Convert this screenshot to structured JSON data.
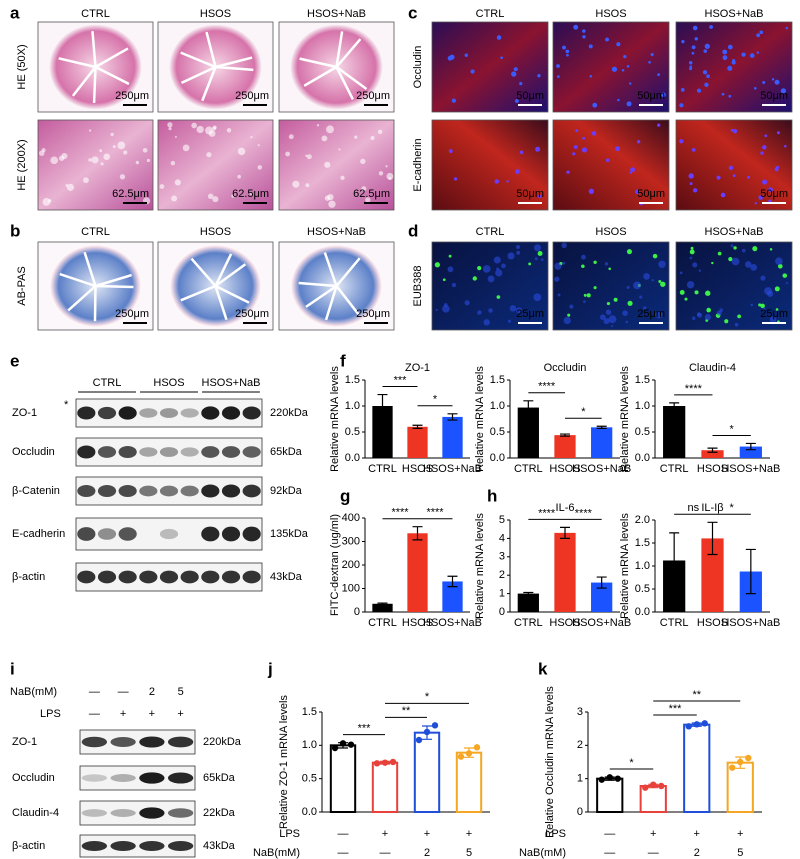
{
  "figure": {
    "a": {
      "letter": "a",
      "columns": [
        "CTRL",
        "HSOS",
        "HSOS+NaB"
      ],
      "rows": [
        {
          "label": "HE (50X)",
          "scale": [
            "250μm",
            "250μm",
            "250μm"
          ]
        },
        {
          "label": "HE (200X)",
          "scale": [
            "62.5μm",
            "62.5μm",
            "62.5μm"
          ]
        }
      ]
    },
    "b": {
      "letter": "b",
      "columns": [
        "CTRL",
        "HSOS",
        "HSOS+NaB"
      ],
      "rows": [
        {
          "label": "AB-PAS",
          "scale": [
            "250μm",
            "250μm",
            "250μm"
          ]
        }
      ]
    },
    "c": {
      "letter": "c",
      "columns": [
        "CTRL",
        "HSOS",
        "HSOS+NaB"
      ],
      "rows": [
        {
          "label": "Occludin",
          "scale": [
            "50μm",
            "50μm",
            "50μm"
          ]
        },
        {
          "label": "E-cadherin",
          "scale": [
            "50μm",
            "50μm",
            "50μm"
          ]
        }
      ]
    },
    "d": {
      "letter": "d",
      "columns": [
        "CTRL",
        "HSOS",
        "HSOS+NaB"
      ],
      "rows": [
        {
          "label": "EUB388",
          "scale": [
            "25μm",
            "25μm",
            "25μm"
          ]
        }
      ]
    },
    "e": {
      "letter": "e",
      "groups": [
        "CTRL",
        "HSOS",
        "HSOS+NaB"
      ],
      "marker": "*",
      "blots": [
        {
          "protein": "ZO-1",
          "size": "220kDa"
        },
        {
          "protein": "Occludin",
          "size": "65kDa"
        },
        {
          "protein": "β-Catenin",
          "size": "92kDa"
        },
        {
          "protein": "E-cadherin",
          "size": "135kDa"
        },
        {
          "protein": "β-actin",
          "size": "43kDa"
        }
      ]
    },
    "i": {
      "letter": "i",
      "conditions": [
        {
          "label": "NaB(mM)",
          "values": [
            "—",
            "—",
            "2",
            "5"
          ]
        },
        {
          "label": "LPS",
          "values": [
            "—",
            "+",
            "+",
            "+"
          ]
        }
      ],
      "blots": [
        {
          "protein": "ZO-1",
          "size": "220kDa"
        },
        {
          "protein": "Occludin",
          "size": "65kDa"
        },
        {
          "protein": "Claudin-4",
          "size": "22kDa"
        },
        {
          "protein": "β-actin",
          "size": "43kDa"
        }
      ]
    },
    "panel_letters": [
      "f",
      "g",
      "h",
      "j",
      "k"
    ]
  },
  "chart_data": [
    {
      "type": "bar",
      "title": "ZO-1",
      "y_label": "Relative mRNA levels",
      "categories": [
        "CTRL",
        "HSOS",
        "HSOS+NaB"
      ],
      "values": [
        1.0,
        0.6,
        0.79
      ],
      "errors": [
        0.22,
        0.03,
        0.06
      ],
      "colors": [
        "#000000",
        "#ee3524",
        "#1a53ff"
      ],
      "fill": "solid",
      "ylim": [
        0,
        1.5
      ],
      "yticks": [
        {
          "value": 0,
          "label": "0.0"
        },
        0.5,
        {
          "value": 1,
          "label": "1.0"
        },
        1.5
      ],
      "significance": [
        {
          "label": "***",
          "between": [
            0,
            1
          ]
        },
        {
          "label": "*",
          "between": [
            1,
            2
          ]
        }
      ]
    },
    {
      "type": "bar",
      "title": "Occludin",
      "y_label": "Relative mRNA levels",
      "categories": [
        "CTRL",
        "HSOS",
        "HSOS+NaB"
      ],
      "values": [
        0.97,
        0.44,
        0.59
      ],
      "errors": [
        0.13,
        0.02,
        0.02
      ],
      "colors": [
        "#000000",
        "#ee3524",
        "#1a53ff"
      ],
      "fill": "solid",
      "ylim": [
        0,
        1.5
      ],
      "yticks": [
        {
          "value": 0,
          "label": "0.0"
        },
        0.5,
        {
          "value": 1,
          "label": "1.0"
        },
        1.5
      ],
      "significance": [
        {
          "label": "****",
          "between": [
            0,
            1
          ]
        },
        {
          "label": "*",
          "between": [
            1,
            2
          ]
        }
      ]
    },
    {
      "type": "bar",
      "title": "Claudin-4",
      "y_label": "Relative mRNA levels",
      "categories": [
        "CTRL",
        "HSOS",
        "HSOS+NaB"
      ],
      "values": [
        1.0,
        0.15,
        0.22
      ],
      "errors": [
        0.06,
        0.04,
        0.06
      ],
      "colors": [
        "#000000",
        "#ee3524",
        "#1a53ff"
      ],
      "fill": "solid",
      "ylim": [
        0,
        1.5
      ],
      "yticks": [
        {
          "value": 0,
          "label": "0.0"
        },
        0.5,
        {
          "value": 1,
          "label": "1.0"
        },
        1.5
      ],
      "significance": [
        {
          "label": "****",
          "between": [
            0,
            1
          ]
        },
        {
          "label": "*",
          "between": [
            1,
            2
          ]
        }
      ]
    },
    {
      "type": "bar",
      "y_label": "FITC-dextran (ug/ml)",
      "categories": [
        "CTRL",
        "HSOS",
        "HSOS+NaB"
      ],
      "values": [
        35,
        335,
        130
      ],
      "errors": [
        3,
        28,
        22
      ],
      "colors": [
        "#000000",
        "#ee3524",
        "#1a53ff"
      ],
      "fill": "solid",
      "ylim": [
        0,
        400
      ],
      "yticks": [
        0,
        100,
        200,
        300,
        400
      ],
      "significance": [
        {
          "label": "****",
          "between": [
            0,
            1
          ]
        },
        {
          "label": "****",
          "between": [
            1,
            2
          ]
        }
      ]
    },
    {
      "type": "bar",
      "title": "IL-6",
      "y_label": "Relative mRNA levels",
      "categories": [
        "CTRL",
        "HSOS",
        "HSOS+NaB"
      ],
      "values": [
        1.0,
        4.3,
        1.6
      ],
      "errors": [
        0.06,
        0.3,
        0.3
      ],
      "colors": [
        "#000000",
        "#ee3524",
        "#1a53ff"
      ],
      "fill": "solid",
      "ylim": [
        0,
        5
      ],
      "yticks": [
        0,
        1,
        2,
        3,
        4,
        5
      ],
      "significance": [
        {
          "label": "****",
          "between": [
            0,
            1
          ]
        },
        {
          "label": "****",
          "between": [
            1,
            2
          ]
        }
      ]
    },
    {
      "type": "bar",
      "title": "IL-Iβ",
      "y_label": "Relative mRNA levels",
      "categories": [
        "CTRL",
        "HSOS",
        "HSOS+NaB"
      ],
      "values": [
        1.12,
        1.6,
        0.88
      ],
      "errors": [
        0.6,
        0.35,
        0.48
      ],
      "colors": [
        "#000000",
        "#ee3524",
        "#1a53ff"
      ],
      "fill": "solid",
      "ylim": [
        0,
        2
      ],
      "yticks": [
        {
          "value": 0,
          "label": "0.0"
        },
        0.5,
        {
          "value": 1,
          "label": "1.0"
        },
        1.5,
        {
          "value": 2,
          "label": "2.0"
        }
      ],
      "significance": [
        {
          "label": "ns",
          "between": [
            0,
            1
          ]
        },
        {
          "label": "*",
          "between": [
            1,
            2
          ]
        }
      ]
    },
    {
      "type": "bar",
      "y_label": "Relative ZO-1 mRNA levels",
      "categories": [
        null,
        null,
        null,
        null
      ],
      "conditions": [
        {
          "label": "LPS",
          "values": [
            "—",
            "+",
            "+",
            "+"
          ]
        },
        {
          "label": "NaB(mM)",
          "values": [
            "—",
            "—",
            "2",
            "5"
          ]
        }
      ],
      "values": [
        1.0,
        0.74,
        1.19,
        0.89
      ],
      "errors": [
        0.04,
        0.02,
        0.1,
        0.07
      ],
      "points": [
        [
          0.96,
          1.03,
          1.01
        ],
        [
          0.73,
          0.74,
          0.75
        ],
        [
          1.08,
          1.2,
          1.3
        ],
        [
          0.83,
          0.88,
          0.97
        ]
      ],
      "colors": [
        "#000000",
        "#e8413b",
        "#1f4fd8",
        "#f5a623"
      ],
      "fill": "outline",
      "ylim": [
        0,
        1.5
      ],
      "yticks": [
        {
          "value": 0,
          "label": "0.0"
        },
        0.5,
        {
          "value": 1,
          "label": "1.0"
        },
        1.5
      ],
      "significance": [
        {
          "label": "***",
          "between": [
            0,
            1
          ]
        },
        {
          "label": "**",
          "between": [
            1,
            2
          ]
        },
        {
          "label": "*",
          "between": [
            1,
            3
          ]
        }
      ]
    },
    {
      "type": "bar",
      "y_label": "Relative Occludin mRNA levels",
      "categories": [
        null,
        null,
        null,
        null
      ],
      "conditions": [
        {
          "label": "LPS",
          "values": [
            "—",
            "+",
            "+",
            "+"
          ]
        },
        {
          "label": "NaB(mM)",
          "values": [
            "—",
            "—",
            "2",
            "5"
          ]
        }
      ],
      "values": [
        1.0,
        0.78,
        2.62,
        1.48
      ],
      "errors": [
        0.05,
        0.05,
        0.05,
        0.17
      ],
      "points": [
        [
          0.97,
          1.04,
          1.0
        ],
        [
          0.73,
          0.82,
          0.78
        ],
        [
          2.57,
          2.63,
          2.66
        ],
        [
          1.33,
          1.5,
          1.62
        ]
      ],
      "colors": [
        "#000000",
        "#e8413b",
        "#1f4fd8",
        "#f5a623"
      ],
      "fill": "outline",
      "ylim": [
        0,
        3
      ],
      "yticks": [
        0,
        1,
        2,
        3
      ],
      "significance": [
        {
          "label": "*",
          "between": [
            0,
            1
          ]
        },
        {
          "label": "***",
          "between": [
            1,
            2
          ]
        },
        {
          "label": "**",
          "between": [
            1,
            3
          ]
        }
      ]
    }
  ]
}
